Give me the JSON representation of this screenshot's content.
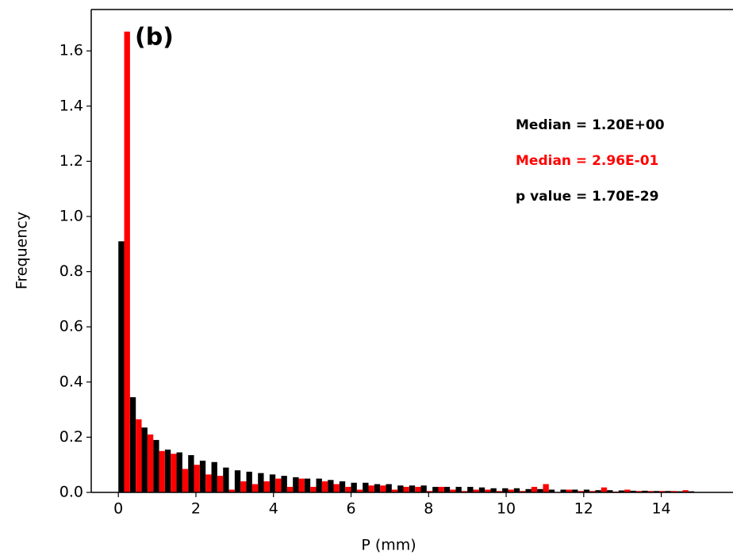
{
  "chart_data": {
    "type": "histogram",
    "xlabel": "P (mm)",
    "ylabel": "Frequency",
    "bins": [
      0,
      0.3,
      0.6,
      0.9,
      1.2,
      1.5,
      1.8,
      2.1,
      2.4,
      2.7,
      3.0,
      3.3,
      3.6,
      3.9,
      4.2,
      4.5,
      4.8,
      5.1,
      5.4,
      5.7,
      6.0,
      6.3,
      6.6,
      6.9,
      7.2,
      7.5,
      7.8,
      8.1,
      8.4,
      8.7,
      9.0,
      9.3,
      9.6,
      9.9,
      10.2,
      10.5,
      10.8,
      11.1,
      11.4,
      11.7,
      12.0,
      12.3,
      12.6,
      12.9,
      13.2,
      13.5,
      13.8,
      14.1,
      14.4,
      14.7,
      15.0
    ],
    "series": [
      {
        "color": "#000000",
        "values": [
          0.91,
          0.345,
          0.235,
          0.19,
          0.155,
          0.145,
          0.135,
          0.115,
          0.11,
          0.09,
          0.08,
          0.075,
          0.07,
          0.065,
          0.06,
          0.055,
          0.05,
          0.05,
          0.045,
          0.04,
          0.035,
          0.035,
          0.03,
          0.03,
          0.025,
          0.025,
          0.025,
          0.02,
          0.02,
          0.02,
          0.02,
          0.018,
          0.015,
          0.015,
          0.015,
          0.012,
          0.012,
          0.01,
          0.01,
          0.01,
          0.01,
          0.008,
          0.008,
          0.007,
          0.006,
          0.006,
          0.005,
          0.005,
          0.004,
          0.004
        ]
      },
      {
        "color": "#ff0000",
        "values": [
          1.67,
          0.265,
          0.21,
          0.15,
          0.14,
          0.085,
          0.1,
          0.065,
          0.06,
          0.01,
          0.04,
          0.03,
          0.04,
          0.05,
          0.02,
          0.05,
          0.02,
          0.04,
          0.03,
          0.02,
          0.01,
          0.025,
          0.025,
          0.01,
          0.02,
          0.02,
          0.005,
          0.02,
          0.01,
          0.005,
          0.01,
          0.01,
          0.005,
          0.01,
          0.005,
          0.02,
          0.03,
          0.0,
          0.01,
          0.005,
          0.005,
          0.018,
          0.003,
          0.01,
          0.005,
          0.005,
          0.005,
          0.005,
          0.008,
          0.0
        ]
      }
    ],
    "xlim": [
      -0.7,
      15.85
    ],
    "ylim": [
      0,
      1.75
    ],
    "xticks": [
      0,
      2,
      4,
      6,
      8,
      10,
      12,
      14
    ],
    "yticks": [
      {
        "value": 0,
        "label": "0.0"
      },
      0.2,
      0.4,
      0.6,
      0.8,
      {
        "value": 1,
        "label": "1.0"
      },
      1.2,
      1.4,
      1.6
    ],
    "panel_label": "(b)",
    "annotations": [
      {
        "text": "Median = 1.20E+00",
        "color": "#000000"
      },
      {
        "text": "Median = 2.96E-01",
        "color": "#ff0000"
      },
      {
        "text": "p value = 1.70E-29",
        "color": "#000000"
      }
    ]
  }
}
